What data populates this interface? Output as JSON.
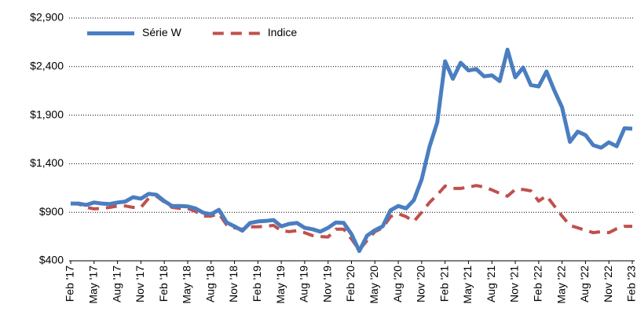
{
  "chart_data": {
    "type": "line",
    "categories": [
      "Feb '17",
      null,
      null,
      "May '17",
      null,
      null,
      "Aug '17",
      null,
      null,
      "Nov '17",
      null,
      null,
      "Feb '18",
      null,
      null,
      "May '18",
      null,
      null,
      "Aug '18",
      null,
      null,
      "Nov '18",
      null,
      null,
      "Feb '19",
      null,
      null,
      "May '19",
      null,
      null,
      "Aug '19",
      null,
      null,
      "Nov '19",
      null,
      null,
      "Feb '20",
      null,
      null,
      "May '20",
      null,
      null,
      "Aug '20",
      null,
      null,
      "Nov '20",
      null,
      null,
      "Feb '21",
      null,
      null,
      "May '21",
      null,
      null,
      "Aug '21",
      null,
      null,
      "Nov '21",
      null,
      null,
      "Feb '22",
      null,
      null,
      "May '22",
      null,
      null,
      "Aug '22",
      null,
      null,
      "Nov '22",
      null,
      null,
      "Feb '23"
    ],
    "series": [
      {
        "name": "Série W",
        "color": "#4a7ec0",
        "style": "solid",
        "values": [
          990,
          990,
          975,
          1000,
          990,
          985,
          1000,
          1010,
          1055,
          1040,
          1090,
          1080,
          1015,
          965,
          965,
          960,
          940,
          895,
          880,
          925,
          795,
          755,
          710,
          790,
          805,
          810,
          820,
          755,
          780,
          790,
          740,
          725,
          700,
          740,
          795,
          790,
          675,
          500,
          660,
          715,
          755,
          920,
          965,
          940,
          1025,
          1240,
          1575,
          1825,
          2455,
          2275,
          2440,
          2360,
          2375,
          2300,
          2310,
          2250,
          2575,
          2290,
          2390,
          2210,
          2195,
          2350,
          2155,
          1980,
          1625,
          1730,
          1695,
          1590,
          1565,
          1620,
          1580,
          1765,
          1760
        ]
      },
      {
        "name": "Indice",
        "color": "#c0504d",
        "style": "dashed",
        "values": [
          990,
          985,
          950,
          935,
          940,
          950,
          965,
          965,
          950,
          950,
          1045,
          1065,
          1005,
          950,
          940,
          940,
          910,
          860,
          860,
          885,
          770,
          740,
          725,
          750,
          750,
          755,
          765,
          710,
          700,
          710,
          690,
          660,
          650,
          645,
          725,
          725,
          625,
          510,
          610,
          700,
          740,
          855,
          885,
          855,
          805,
          900,
          1000,
          1080,
          1170,
          1145,
          1145,
          1160,
          1175,
          1160,
          1130,
          1095,
          1065,
          1135,
          1135,
          1120,
          1015,
          1070,
          965,
          860,
          765,
          740,
          715,
          690,
          700,
          690,
          730,
          755,
          755
        ]
      }
    ],
    "ylim": [
      400,
      2900
    ],
    "yticks": [
      {
        "value": 400,
        "label": "$400"
      },
      {
        "value": 900,
        "label": "$900"
      },
      {
        "value": 1400,
        "label": "$1,400"
      },
      {
        "value": 1900,
        "label": "$1,900"
      },
      {
        "value": 2400,
        "label": "$2,400"
      },
      {
        "value": 2900,
        "label": "$2,900"
      }
    ],
    "grid": true,
    "legend": "top-left"
  }
}
